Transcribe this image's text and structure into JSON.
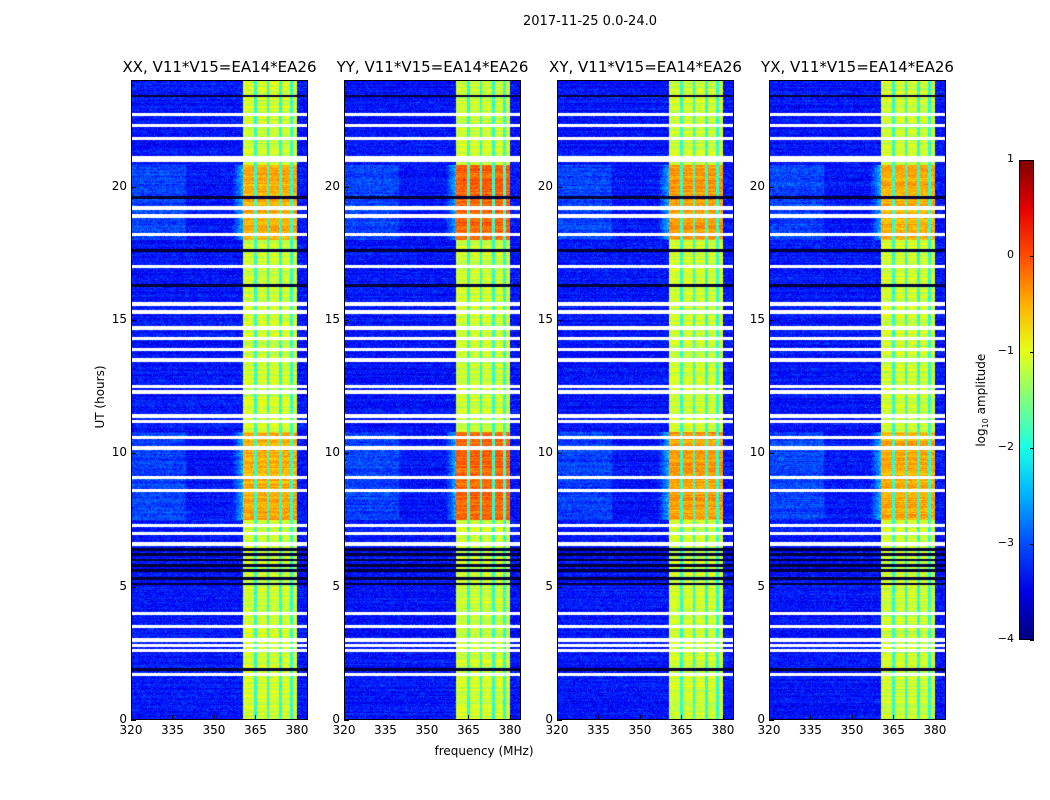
{
  "title": "2017-11-25 0.0-24.0",
  "chart_data": {
    "type": "heatmap",
    "panels": [
      {
        "title": "XX, V11*V15=EA14*EA26",
        "band_peak": -0.3
      },
      {
        "title": "YY, V11*V15=EA14*EA26",
        "band_peak": 0.1
      },
      {
        "title": "XY, V11*V15=EA14*EA26",
        "band_peak": -0.2
      },
      {
        "title": "YX, V11*V15=EA14*EA26",
        "band_peak": -0.3
      }
    ],
    "xlabel": "frequency (MHz)",
    "ylabel": "UT (hours)",
    "xlim": [
      320,
      384
    ],
    "ylim": [
      0,
      24
    ],
    "xticks": [
      "320",
      "335",
      "350",
      "365",
      "380"
    ],
    "xtick_values": [
      320,
      335,
      350,
      365,
      380
    ],
    "yticks": [
      "0",
      "5",
      "10",
      "15",
      "20"
    ],
    "ytick_values": [
      0,
      5,
      10,
      15,
      20
    ],
    "background_level": -3.3,
    "band_range_mhz": [
      360.5,
      380
    ],
    "band_notch_mhz": [
      365,
      369.5,
      374,
      378
    ],
    "bright_periods_hours": [
      [
        7.5,
        10.8
      ],
      [
        18,
        20.8
      ]
    ],
    "flagged_hours": [
      1.7,
      2.6,
      2.8,
      3.0,
      3.5,
      4.0,
      6.6,
      7.0,
      7.3,
      8.6,
      9.1,
      10.2,
      10.6,
      11.2,
      11.4,
      12.3,
      12.5,
      13.5,
      13.9,
      14.3,
      14.7,
      15.3,
      15.6,
      17.0,
      18.2,
      18.9,
      19.2,
      21.0,
      21.1,
      21.8,
      22.3,
      22.7
    ],
    "dark_rows_hours": [
      1.9,
      5.1,
      5.3,
      5.6,
      5.8,
      6.0,
      6.2,
      6.4,
      16.3,
      17.6,
      19.6,
      23.4
    ],
    "colorbar": {
      "label_prefix": "log",
      "label_sub": "10",
      "label_suffix": " amplitude",
      "range": [
        -4,
        1
      ],
      "ticks": [
        "1",
        "0",
        "−1",
        "−2",
        "−3",
        "−4"
      ],
      "tick_values": [
        1,
        0,
        -1,
        -2,
        -3,
        -4
      ],
      "colormap": "jet"
    }
  }
}
